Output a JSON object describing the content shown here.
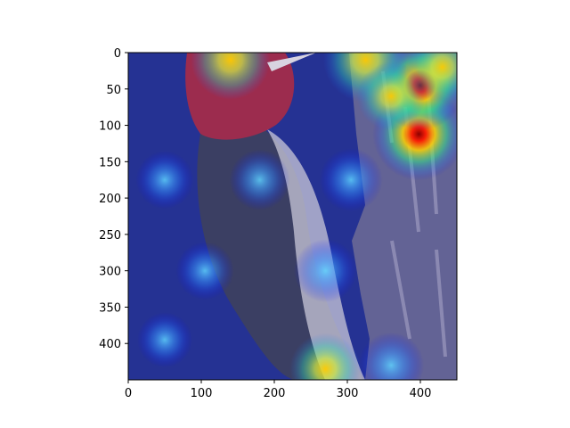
{
  "chart_data": {
    "type": "heatmap",
    "title": "",
    "xlabel": "",
    "ylabel": "",
    "xlim": [
      0,
      450
    ],
    "ylim": [
      450,
      0
    ],
    "x_ticks": [
      "0",
      "100",
      "200",
      "300",
      "400"
    ],
    "y_ticks": [
      "0",
      "50",
      "100",
      "150",
      "200",
      "250",
      "300",
      "350",
      "400"
    ],
    "colormap": "jet",
    "hotspots": [
      {
        "x": 398,
        "y": 112,
        "strength": 1.0
      },
      {
        "x": 400,
        "y": 45,
        "strength": 0.95
      },
      {
        "x": 325,
        "y": 10,
        "strength": 0.85
      },
      {
        "x": 140,
        "y": 10,
        "strength": 0.75
      },
      {
        "x": 430,
        "y": 20,
        "strength": 0.6
      },
      {
        "x": 360,
        "y": 60,
        "strength": 0.55
      },
      {
        "x": 305,
        "y": 175,
        "strength": 0.45
      },
      {
        "x": 270,
        "y": 300,
        "strength": 0.45
      },
      {
        "x": 270,
        "y": 435,
        "strength": 0.6
      },
      {
        "x": 360,
        "y": 430,
        "strength": 0.5
      },
      {
        "x": 180,
        "y": 175,
        "strength": 0.4
      },
      {
        "x": 50,
        "y": 175,
        "strength": 0.35
      },
      {
        "x": 105,
        "y": 300,
        "strength": 0.35
      },
      {
        "x": 50,
        "y": 395,
        "strength": 0.3
      }
    ]
  },
  "image_subject": {
    "foreground_color": "#3b3f63",
    "head_color": "#9c2c4e",
    "belly_color": "#c9c8d8",
    "bark_color": "#6e6c95"
  }
}
